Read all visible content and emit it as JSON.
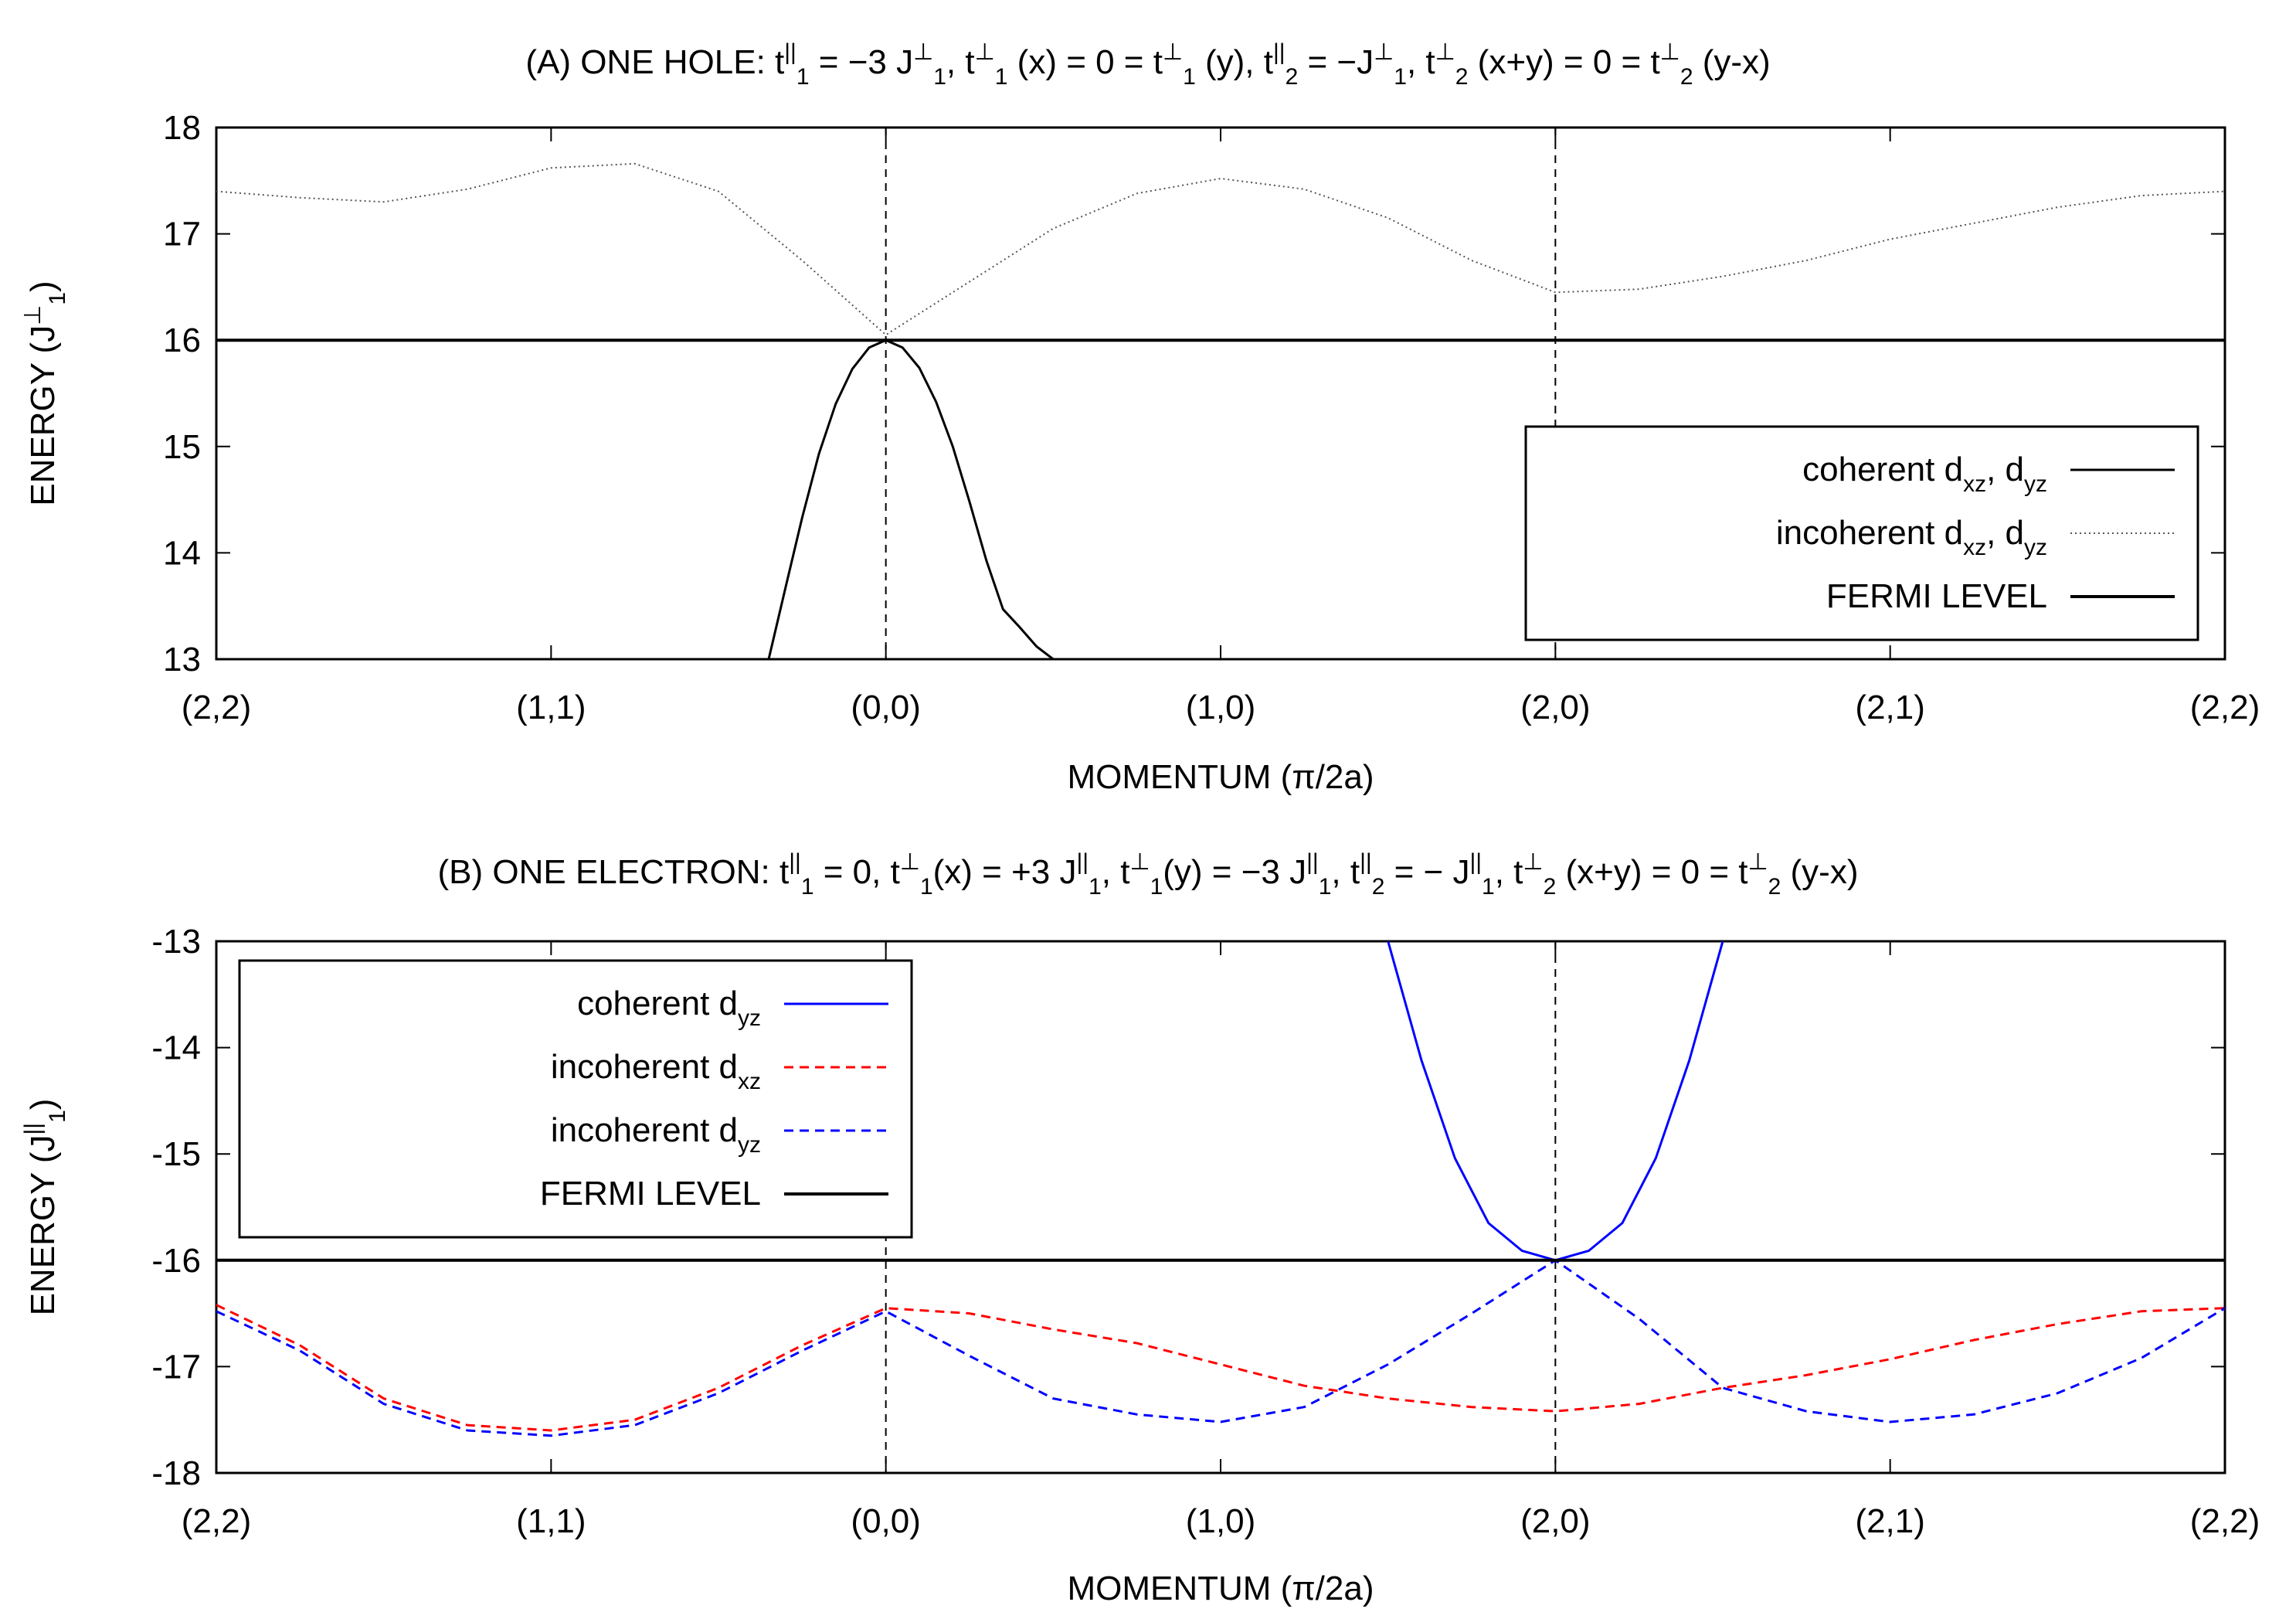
{
  "chart_data": [
    {
      "type": "line",
      "title": {
        "prefix": "(A) ONE HOLE:",
        "parts": [
          {
            "base": "t",
            "sup": "||",
            "sub": "1",
            "rest": " = −3 J"
          },
          {
            "base": "",
            "sup": "⊥",
            "sub": "1",
            "rest": ", t"
          },
          {
            "base": "",
            "sup": "⊥",
            "sub": "1",
            "rest": " (x) = 0 = t"
          },
          {
            "base": "",
            "sup": "⊥",
            "sub": "1",
            "rest": " (y), t"
          },
          {
            "base": "",
            "sup": "||",
            "sub": "2",
            "rest": " = −J"
          },
          {
            "base": "",
            "sup": "⊥",
            "sub": "1",
            "rest": ", t"
          },
          {
            "base": "",
            "sup": "⊥",
            "sub": "2",
            "rest": " (x+y) = 0 = t"
          },
          {
            "base": "",
            "sup": "⊥",
            "sub": "2",
            "rest": " (y-x)"
          }
        ]
      },
      "xlabel": "MOMENTUM (π/2a)",
      "ylabel": {
        "text": "ENERGY (J",
        "sup": "⊥",
        "sub": "1",
        "close": ")"
      },
      "xlim": [
        0,
        6
      ],
      "ylim": [
        13,
        18
      ],
      "x_tick_labels": [
        "(2,2)",
        "(1,1)",
        "(0,0)",
        "(1,0)",
        "(2,0)",
        "(2,1)",
        "(2,2)"
      ],
      "y_ticks": [
        13,
        14,
        15,
        16,
        17,
        18
      ],
      "vlines": [
        2,
        4
      ],
      "legend_position": "bottom-right",
      "series": [
        {
          "name": {
            "text": "coherent d",
            "sub": "xz",
            "mid": ", d",
            "sub2": "yz"
          },
          "color": "#000000",
          "style": "solid",
          "x": [
            1.65,
            1.7,
            1.75,
            1.8,
            1.85,
            1.9,
            1.95,
            2.0,
            2.05,
            2.1,
            2.15,
            2.2,
            2.25,
            2.3,
            2.35,
            2.4,
            2.45,
            2.5
          ],
          "y": [
            13.0,
            13.67,
            14.33,
            14.93,
            15.4,
            15.73,
            15.93,
            16.0,
            15.93,
            15.74,
            15.42,
            15.0,
            14.48,
            13.93,
            13.47,
            13.3,
            13.12,
            13.0
          ]
        },
        {
          "name": {
            "text": "incoherent d",
            "sub": "xz",
            "mid": ", d",
            "sub2": "yz"
          },
          "color": "#555555",
          "style": "dotted",
          "x": [
            0.0,
            0.25,
            0.5,
            0.75,
            1.0,
            1.25,
            1.5,
            1.75,
            2.0,
            2.25,
            2.5,
            2.75,
            3.0,
            3.25,
            3.5,
            3.75,
            4.0,
            4.25,
            4.5,
            4.75,
            5.0,
            5.25,
            5.5,
            5.75,
            6.0
          ],
          "y": [
            17.4,
            17.34,
            17.3,
            17.42,
            17.62,
            17.66,
            17.4,
            16.75,
            16.05,
            16.55,
            17.05,
            17.38,
            17.52,
            17.42,
            17.15,
            16.75,
            16.45,
            16.48,
            16.6,
            16.75,
            16.95,
            17.1,
            17.25,
            17.36,
            17.4
          ]
        },
        {
          "name": {
            "text": "FERMI LEVEL"
          },
          "color": "#000000",
          "style": "thick",
          "x": [
            0,
            6
          ],
          "y": [
            16,
            16
          ]
        }
      ]
    },
    {
      "type": "line",
      "title": {
        "prefix": "(B) ONE ELECTRON:",
        "parts": [
          {
            "base": "t",
            "sup": "||",
            "sub": "1",
            "rest": " = 0, t"
          },
          {
            "base": "",
            "sup": "⊥",
            "sub": "1",
            "rest": "(x) = +3 J"
          },
          {
            "base": "",
            "sup": "||",
            "sub": "1",
            "rest": ", t"
          },
          {
            "base": "",
            "sup": "⊥",
            "sub": "1",
            "rest": "(y) = −3 J"
          },
          {
            "base": "",
            "sup": "||",
            "sub": "1",
            "rest": ", t"
          },
          {
            "base": "",
            "sup": "||",
            "sub": "2",
            "rest": " = − J"
          },
          {
            "base": "",
            "sup": "||",
            "sub": "1",
            "rest": ", t"
          },
          {
            "base": "",
            "sup": "⊥",
            "sub": "2",
            "rest": " (x+y) = 0 = t"
          },
          {
            "base": "",
            "sup": "⊥",
            "sub": "2",
            "rest": " (y-x)"
          }
        ]
      },
      "xlabel": "MOMENTUM (π/2a)",
      "ylabel": {
        "text": "ENERGY (J",
        "sup": "||",
        "sub": "1",
        "close": ")"
      },
      "xlim": [
        0,
        6
      ],
      "ylim": [
        -18,
        -13
      ],
      "x_tick_labels": [
        "(2,2)",
        "(1,1)",
        "(0,0)",
        "(1,0)",
        "(2,0)",
        "(2,1)",
        "(2,2)"
      ],
      "y_ticks": [
        -13,
        -14,
        -15,
        -16,
        -17,
        -18
      ],
      "vlines": [
        2,
        4
      ],
      "legend_position": "top-left",
      "series": [
        {
          "name": {
            "text": "coherent d",
            "sub": "yz"
          },
          "color": "#0000ff",
          "style": "solid",
          "x": [
            3.5,
            3.6,
            3.7,
            3.8,
            3.9,
            4.0,
            4.1,
            4.2,
            4.3,
            4.4,
            4.5
          ],
          "y": [
            -13.0,
            -14.12,
            -15.04,
            -15.65,
            -15.91,
            -16.0,
            -15.91,
            -15.65,
            -15.04,
            -14.12,
            -13.0
          ]
        },
        {
          "name": {
            "text": "incoherent d",
            "sub": "xz"
          },
          "color": "#ff0000",
          "style": "dashed",
          "x": [
            0.0,
            0.25,
            0.5,
            0.75,
            1.0,
            1.25,
            1.5,
            1.75,
            2.0,
            2.25,
            2.5,
            2.75,
            3.0,
            3.25,
            3.5,
            3.75,
            4.0,
            4.25,
            4.5,
            4.75,
            5.0,
            5.25,
            5.5,
            5.75,
            6.0
          ],
          "y": [
            -16.42,
            -16.8,
            -17.3,
            -17.55,
            -17.6,
            -17.5,
            -17.2,
            -16.8,
            -16.45,
            -16.5,
            -16.65,
            -16.78,
            -16.98,
            -17.18,
            -17.3,
            -17.38,
            -17.42,
            -17.35,
            -17.2,
            -17.08,
            -16.93,
            -16.75,
            -16.6,
            -16.48,
            -16.45
          ]
        },
        {
          "name": {
            "text": "incoherent d",
            "sub": "yz"
          },
          "color": "#0000ff",
          "style": "dashed",
          "x": [
            0.0,
            0.25,
            0.5,
            0.75,
            1.0,
            1.25,
            1.5,
            1.75,
            2.0,
            2.25,
            2.5,
            2.75,
            3.0,
            3.25,
            3.5,
            3.75,
            4.0,
            4.25,
            4.5,
            4.75,
            5.0,
            5.25,
            5.5,
            5.75,
            6.0
          ],
          "y": [
            -16.48,
            -16.85,
            -17.35,
            -17.6,
            -17.65,
            -17.55,
            -17.25,
            -16.85,
            -16.48,
            -16.9,
            -17.3,
            -17.45,
            -17.52,
            -17.38,
            -16.98,
            -16.5,
            -16.0,
            -16.55,
            -17.2,
            -17.42,
            -17.52,
            -17.45,
            -17.25,
            -16.92,
            -16.45
          ]
        },
        {
          "name": {
            "text": "FERMI LEVEL"
          },
          "color": "#000000",
          "style": "thick",
          "x": [
            0,
            6
          ],
          "y": [
            -16,
            -16
          ]
        }
      ]
    }
  ]
}
